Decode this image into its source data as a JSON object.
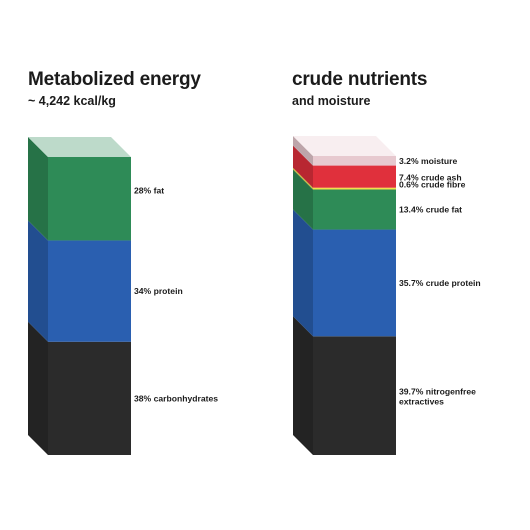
{
  "chart_data": [
    {
      "type": "bar",
      "stacked": true,
      "title": "Metabolized energy",
      "subtitle": "~ 4,242 kcal/kg",
      "unit": "%",
      "categories": [
        "carbonhydrates",
        "protein",
        "fat"
      ],
      "series": [
        {
          "name": "carbonhydrates",
          "label": "38% carbonhydrates",
          "value": 38,
          "color": "#2b2b2b"
        },
        {
          "name": "protein",
          "label": "34% protein",
          "value": 34,
          "color": "#2a5fb0"
        },
        {
          "name": "fat",
          "label": "28% fat",
          "value": 28,
          "color": "#2e8b57"
        }
      ],
      "legend": "right of bar"
    },
    {
      "type": "bar",
      "stacked": true,
      "title": "crude nutrients",
      "subtitle": "and moisture",
      "unit": "%",
      "categories": [
        "nitrogenfree extractives",
        "crude protein",
        "crude fat",
        "crude fibre",
        "crude ash",
        "moisture"
      ],
      "series": [
        {
          "name": "nitrogenfree extractives",
          "label": "39.7% nitrogenfree extractives",
          "value": 39.7,
          "color": "#2b2b2b"
        },
        {
          "name": "crude protein",
          "label": "35.7% crude protein",
          "value": 35.7,
          "color": "#2a5fb0"
        },
        {
          "name": "crude fat",
          "label": "13.4% crude fat",
          "value": 13.4,
          "color": "#2e8b57"
        },
        {
          "name": "crude fibre",
          "label": "0.6% crude fibre",
          "value": 0.6,
          "color": "#f0e04a"
        },
        {
          "name": "crude ash",
          "label": "7.4% crude ash",
          "value": 7.4,
          "color": "#e0303c"
        },
        {
          "name": "moisture",
          "label": "3.2% moisture",
          "value": 3.2,
          "color": "#e7c9cf"
        }
      ],
      "legend": "right of bar"
    }
  ]
}
